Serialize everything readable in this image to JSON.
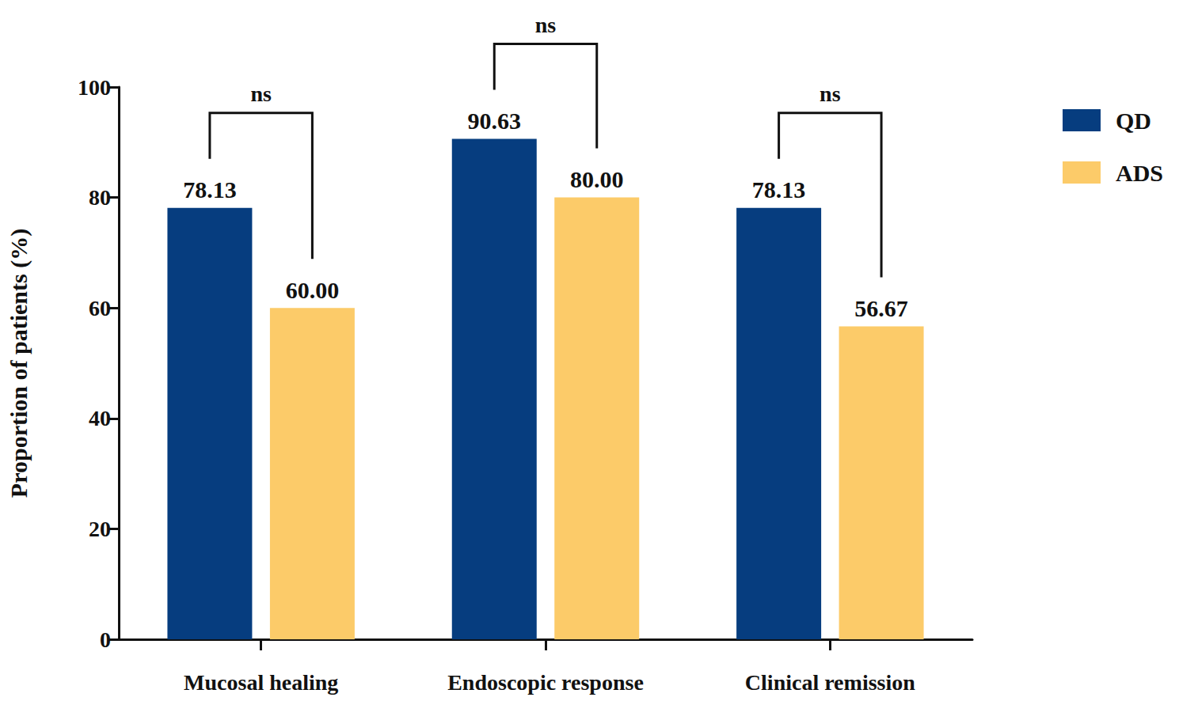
{
  "chart_data": {
    "type": "bar",
    "categories": [
      "Mucosal healing",
      "Endoscopic response",
      "Clinical remission"
    ],
    "series": [
      {
        "name": "QD",
        "color": "#063d7f",
        "values": [
          78.13,
          90.63,
          78.13
        ],
        "value_labels": [
          "78.13",
          "90.63",
          "78.13"
        ]
      },
      {
        "name": "ADS",
        "color": "#fccb69",
        "values": [
          60,
          80,
          56.67
        ],
        "value_labels": [
          "60.00",
          "80.00",
          "56.67"
        ]
      }
    ],
    "y_label": "Proportion of patients (%)",
    "ylim": [
      0,
      100
    ],
    "yticks": [
      0,
      20,
      40,
      60,
      80,
      100
    ],
    "grid": false,
    "legend": "upper right",
    "data_labels": true,
    "annotations": [
      {
        "category": "Mucosal healing",
        "text": "ns"
      },
      {
        "category": "Endoscopic response",
        "text": "ns"
      },
      {
        "category": "Clinical remission",
        "text": "ns"
      }
    ]
  }
}
